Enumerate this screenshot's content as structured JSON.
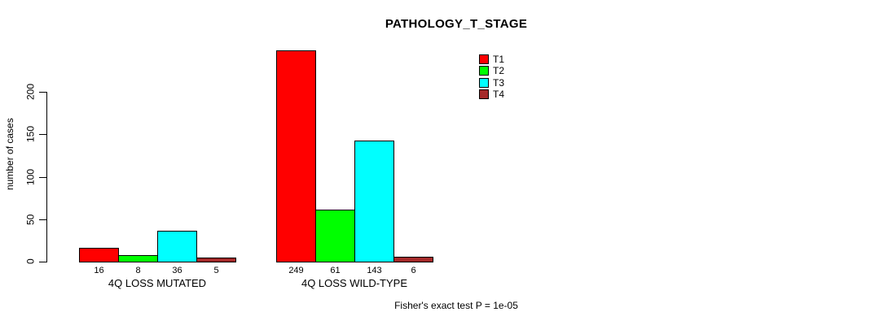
{
  "chart_data": {
    "type": "bar",
    "title": "PATHOLOGY_T_STAGE",
    "ylabel": "number of cases",
    "xlabel": "",
    "categories": [
      "4Q LOSS MUTATED",
      "4Q LOSS WILD-TYPE"
    ],
    "series": [
      {
        "name": "T1",
        "color": "#ff0000",
        "values": [
          16,
          249
        ]
      },
      {
        "name": "T2",
        "color": "#00ff00",
        "values": [
          8,
          61
        ]
      },
      {
        "name": "T3",
        "color": "#00ffff",
        "values": [
          36,
          143
        ]
      },
      {
        "name": "T4",
        "color": "#a52a2a",
        "values": [
          5,
          6
        ]
      }
    ],
    "yticks": [
      0,
      50,
      100,
      150,
      200
    ],
    "ylim": [
      0,
      249
    ],
    "bar_value_labels_shown": true,
    "grid": false,
    "legend_position": "top-right",
    "annotation": "Fisher's exact test P = 1e-05"
  }
}
